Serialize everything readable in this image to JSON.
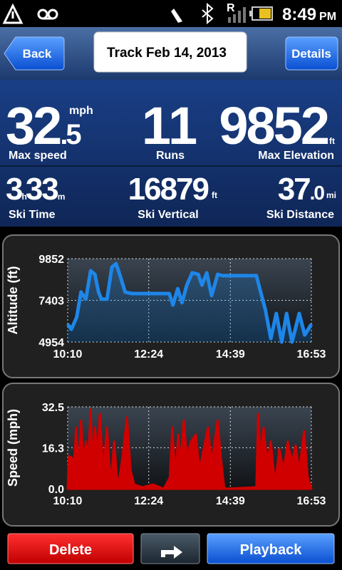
{
  "status_bar": {
    "roaming": "R",
    "time": "8:49",
    "ampm": "PM"
  },
  "header": {
    "back": "Back",
    "title": "Track Feb 14, 2013",
    "details": "Details"
  },
  "stats": {
    "max_speed": {
      "whole": "32",
      "decimal": ".5",
      "unit": "mph",
      "label": "Max speed"
    },
    "runs": {
      "value": "11",
      "label": "Runs"
    },
    "max_elevation": {
      "value": "9852",
      "unit": "ft",
      "label": "Max Elevation"
    },
    "ski_time": {
      "hours": "3",
      "h": "h",
      "minutes": "33",
      "m": "m",
      "label": "Ski Time"
    },
    "ski_vertical": {
      "value": "16879",
      "unit": "ft",
      "label": "Ski Vertical"
    },
    "ski_distance": {
      "whole": "37",
      "decimal": ".0",
      "unit": "mi",
      "label": "Ski Distance"
    }
  },
  "chart_data": [
    {
      "type": "line",
      "y_label": "Altitude (ft)",
      "color": "#1e86e8",
      "xlim": [
        610,
        1013
      ],
      "xticks": [
        {
          "value": 610,
          "label": "10:10"
        },
        {
          "value": 744,
          "label": "12:24"
        },
        {
          "value": 879,
          "label": "14:39"
        },
        {
          "value": 1013,
          "label": "16:53"
        }
      ],
      "ylim": [
        4954,
        9852
      ],
      "yticks": [
        4954,
        7403,
        9852
      ],
      "grid": true,
      "x": [
        610,
        616,
        625,
        632,
        640,
        648,
        655,
        661,
        666,
        675,
        683,
        690,
        696,
        705,
        716,
        778,
        784,
        792,
        799,
        807,
        816,
        826,
        832,
        840,
        848,
        858,
        866,
        922,
        937,
        946,
        955,
        964,
        972,
        981,
        993,
        1002,
        1013
      ],
      "values": [
        6000,
        5700,
        6420,
        7890,
        7470,
        9140,
        8930,
        7890,
        7470,
        7470,
        9350,
        9560,
        8930,
        7890,
        7800,
        7800,
        7130,
        8090,
        7260,
        8300,
        9020,
        8930,
        8300,
        9020,
        7680,
        8930,
        8850,
        8850,
        6840,
        5160,
        6630,
        4954,
        6630,
        4954,
        6630,
        5370,
        6000
      ]
    },
    {
      "type": "area",
      "y_label": "Speed (mph)",
      "color": "#d00000",
      "xlim": [
        610,
        1013
      ],
      "xticks": [
        {
          "value": 610,
          "label": "10:10"
        },
        {
          "value": 744,
          "label": "12:24"
        },
        {
          "value": 879,
          "label": "14:39"
        },
        {
          "value": 1013,
          "label": "16:53"
        }
      ],
      "ylim": [
        0,
        32.5
      ],
      "yticks": [
        {
          "value": 0,
          "label": "0.0"
        },
        16.3,
        32.5
      ],
      "grid": true,
      "x": [
        610,
        612,
        621,
        624,
        628,
        632,
        636,
        640,
        644,
        648,
        651,
        655,
        660,
        663,
        669,
        675,
        681,
        687,
        693,
        701,
        708,
        714,
        720,
        734,
        751,
        769,
        779,
        783,
        788,
        793,
        797,
        802,
        807,
        814,
        822,
        828,
        835,
        842,
        848,
        858,
        863,
        869,
        922,
        925,
        929,
        934,
        940,
        946,
        953,
        960,
        967,
        974,
        981,
        987,
        993,
        1001,
        1007,
        1013
      ],
      "values": [
        0,
        13,
        11.6,
        24.3,
        7.3,
        27.1,
        10.2,
        18.7,
        11.6,
        31.4,
        10.2,
        24.3,
        13,
        29.7,
        7.3,
        24.3,
        1.7,
        18.7,
        0,
        13,
        28.3,
        7.3,
        1.7,
        0.6,
        1.7,
        0,
        4.5,
        24.3,
        4.5,
        21.5,
        10.2,
        27.1,
        13,
        18.7,
        21.5,
        7.3,
        15.8,
        24.3,
        10.2,
        27.1,
        13,
        0,
        0.6,
        29.7,
        13,
        24.3,
        10.2,
        18.7,
        1.7,
        15.8,
        7.3,
        18.7,
        10.2,
        17.2,
        7.3,
        22.9,
        4.5,
        0
      ]
    }
  ],
  "buttons": {
    "delete": "Delete",
    "playback": "Playback"
  }
}
